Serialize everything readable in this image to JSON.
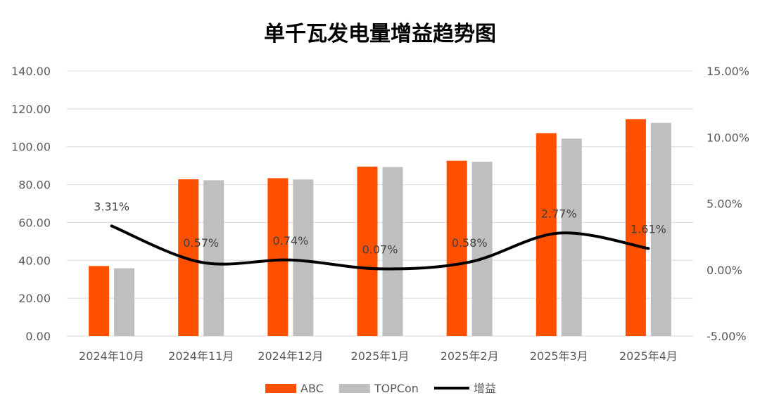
{
  "chart_data": {
    "type": "bar",
    "title": "单千瓦发电量增益趋势图",
    "categories": [
      "2024年10月",
      "2024年11月",
      "2024年12月",
      "2025年1月",
      "2025年2月",
      "2025年3月",
      "2025年4月"
    ],
    "series": [
      {
        "name": "ABC",
        "type": "bar",
        "axis": "left",
        "color": "#FF5000",
        "values": [
          37.0,
          82.8,
          83.4,
          89.5,
          92.6,
          107.2,
          114.6
        ]
      },
      {
        "name": "TOPCon",
        "type": "bar",
        "axis": "left",
        "color": "#BFBFBF",
        "values": [
          35.8,
          82.3,
          82.7,
          89.3,
          92.1,
          104.3,
          112.6
        ]
      },
      {
        "name": "增益",
        "type": "line",
        "axis": "right",
        "smooth": true,
        "color": "#000000",
        "values": [
          3.31,
          0.57,
          0.74,
          0.07,
          0.58,
          2.77,
          1.61
        ],
        "labels": [
          "3.31%",
          "0.57%",
          "0.74%",
          "0.07%",
          "0.58%",
          "2.77%",
          "1.61%"
        ]
      }
    ],
    "y_left": {
      "ylim": [
        0,
        140
      ],
      "ticks": [
        "0.00",
        "20.00",
        "40.00",
        "60.00",
        "80.00",
        "100.00",
        "120.00",
        "140.00"
      ]
    },
    "y_right": {
      "ylim": [
        -5,
        15
      ],
      "ticks": [
        "-5.00%",
        "0.00%",
        "5.00%",
        "10.00%",
        "15.00%"
      ]
    },
    "grid": true,
    "legend_position": "bottom"
  }
}
